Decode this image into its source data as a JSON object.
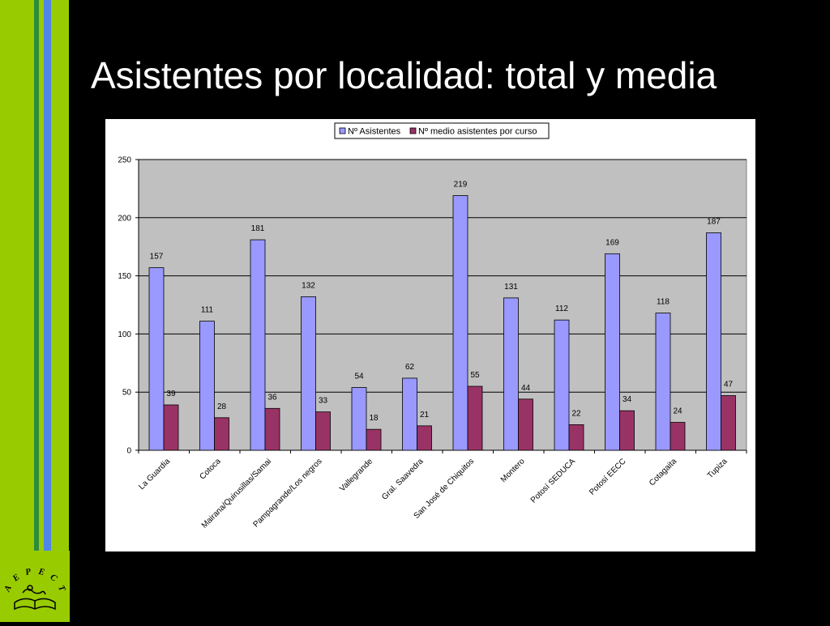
{
  "slide": {
    "title": "Asistentes por localidad: total y media",
    "colors": {
      "background": "#000000",
      "stripe_lime": "#99cc00",
      "stripe_green": "#2e8b3e",
      "stripe_blue": "#4f86e8"
    }
  },
  "logo": {
    "letters": [
      "A",
      "E",
      "P",
      "E",
      "C",
      "T"
    ],
    "icon": "book-with-figure-icon"
  },
  "chart_data": {
    "type": "bar",
    "categories": [
      "La Guardia",
      "Cotoca",
      "Mairana/Quirusillas/Samai",
      "Pampagrande/Los negros",
      "Vallegrande",
      "Gral. Saavedra",
      "San José de Chiquitos",
      "Montero",
      "Potosí SEDUCA",
      "Potosí EECC",
      "Cotagaita",
      "Tupiza"
    ],
    "series": [
      {
        "name": "Nº Asistentes",
        "color": "#9999ff",
        "values": [
          157,
          111,
          181,
          132,
          54,
          62,
          219,
          131,
          112,
          169,
          118,
          187
        ]
      },
      {
        "name": "Nº medio asistentes por curso",
        "color": "#993366",
        "values": [
          39,
          28,
          36,
          33,
          18,
          21,
          55,
          44,
          22,
          34,
          24,
          47
        ]
      }
    ],
    "ylim": [
      0,
      250
    ],
    "yticks": [
      0,
      50,
      100,
      150,
      200,
      250
    ],
    "grid": true,
    "plot_background": "#c0c0c0",
    "legend_position": "top-center",
    "data_labels": true
  }
}
